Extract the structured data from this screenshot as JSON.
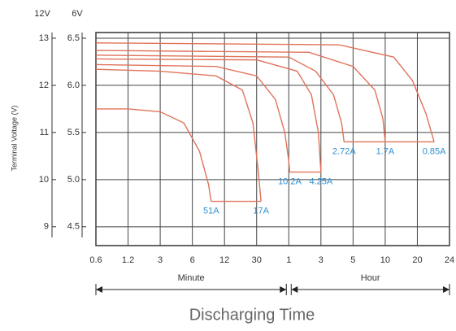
{
  "chart_data": {
    "type": "line",
    "y_label": "Terminal Voltage (V)",
    "y_axis_title": "6V",
    "y2_axis_title": "12V",
    "x_label": "Discharging Time",
    "x_groups": [
      "Minute",
      "Hour"
    ],
    "x_log": true,
    "grid": true,
    "color": "#e0735a",
    "label_color": "#2f8fd2",
    "xlim": [
      0.6,
      1440
    ],
    "xticks": [
      0.6,
      1.2,
      3,
      6,
      12,
      30,
      {
        "value": 60,
        "label": "1"
      },
      {
        "value": 180,
        "label": "3"
      },
      {
        "value": 300,
        "label": "5"
      },
      {
        "value": 600,
        "label": "10"
      },
      {
        "value": 1200,
        "label": "20"
      },
      {
        "value": 1440,
        "label": "24"
      }
    ],
    "ylim": [
      4.3,
      6.56
    ],
    "yticks": [
      4.5,
      5.0,
      5.5,
      6.0,
      6.5
    ],
    "y2lim": [
      8.6,
      13.12
    ],
    "y2ticks": [
      9,
      10,
      11,
      12,
      13
    ],
    "series": [
      {
        "name": "51A",
        "x": [
          0.6,
          1.2,
          3,
          5,
          7,
          8.5,
          9
        ],
        "values": [
          5.75,
          5.75,
          5.72,
          5.6,
          5.3,
          4.95,
          4.77
        ]
      },
      {
        "name": "17A",
        "x": [
          0.6,
          3,
          10,
          20,
          27,
          31,
          33
        ],
        "values": [
          6.17,
          6.15,
          6.1,
          5.95,
          5.6,
          5.1,
          4.77
        ]
      },
      {
        "name": "10.2A",
        "x": [
          0.6,
          10,
          30,
          45,
          55,
          60,
          62
        ],
        "values": [
          6.22,
          6.2,
          6.1,
          5.85,
          5.5,
          5.2,
          5.08
        ]
      },
      {
        "name": "4.25A",
        "x": [
          0.6,
          30,
          80,
          130,
          165,
          180
        ],
        "values": [
          6.28,
          6.27,
          6.15,
          5.9,
          5.5,
          5.08
        ]
      },
      {
        "name": "2.72A",
        "x": [
          0.6,
          60,
          150,
          220,
          250,
          260
        ],
        "values": [
          6.32,
          6.3,
          6.15,
          5.9,
          5.6,
          5.4
        ]
      },
      {
        "name": "1.7A",
        "x": [
          0.6,
          120,
          300,
          480,
          570,
          600
        ],
        "values": [
          6.37,
          6.35,
          6.2,
          5.95,
          5.65,
          5.4
        ]
      },
      {
        "name": "0.85A",
        "x": [
          0.6,
          240,
          720,
          1080,
          1260,
          1320
        ],
        "values": [
          6.45,
          6.43,
          6.3,
          6.05,
          5.7,
          5.4
        ]
      }
    ],
    "cutoff_lines": [
      {
        "x": [
          9,
          33
        ],
        "y": 4.77
      },
      {
        "x": [
          62,
          180
        ],
        "y": 5.08
      },
      {
        "x": [
          260,
          1320
        ],
        "y": 5.4
      }
    ]
  }
}
